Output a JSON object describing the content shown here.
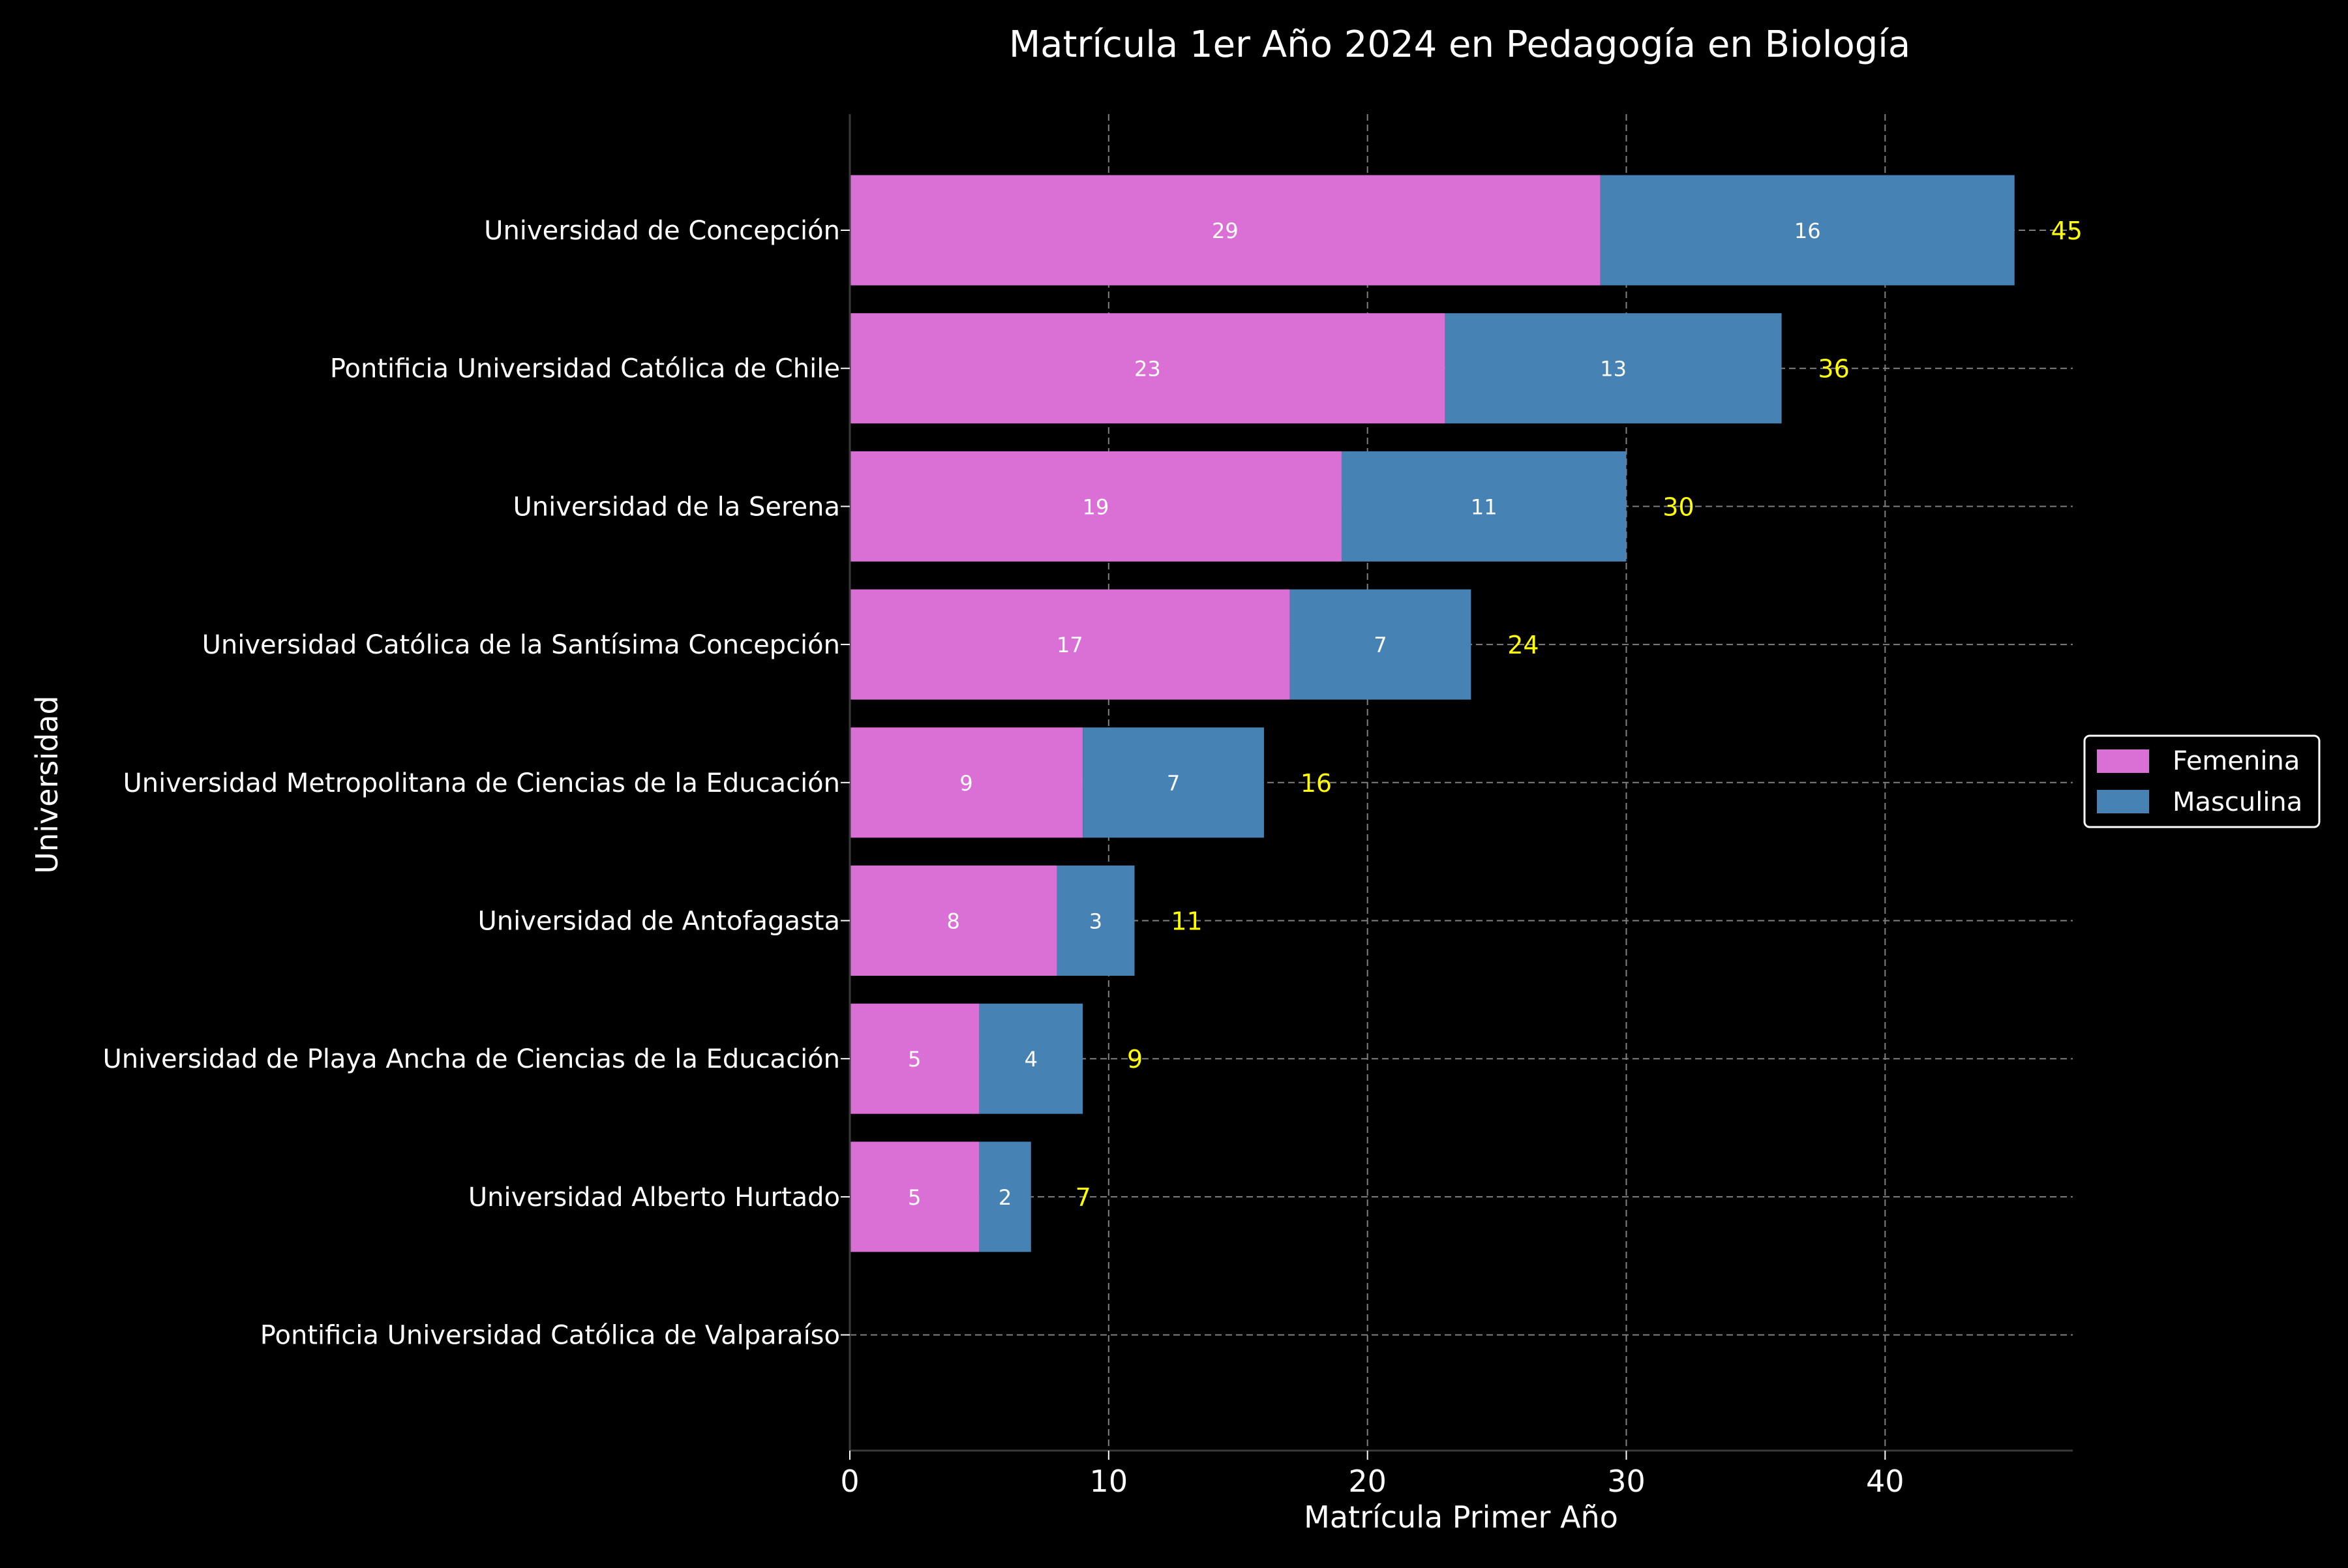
{
  "chart_data": {
    "type": "bar",
    "orientation": "horizontal",
    "stacked": true,
    "title": "Matrícula 1er Año 2024 en Pedagogía en Biología",
    "xlabel": "Matrícula Primer Año",
    "ylabel": "Universidad",
    "xlim": [
      0,
      47.25
    ],
    "xticks": [
      "0",
      "10",
      "20",
      "30",
      "40"
    ],
    "grid": true,
    "legend_position": "right",
    "categories": [
      "Universidad de Concepción",
      "Pontificia Universidad Católica de Chile",
      "Universidad de la Serena",
      "Universidad Católica de la Santísima Concepción",
      "Universidad Metropolitana de Ciencias de la Educación",
      "Universidad de Antofagasta",
      "Universidad de Playa Ancha de Ciencias de la Educación",
      "Universidad Alberto Hurtado",
      "Pontificia Universidad Católica de Valparaíso"
    ],
    "series": [
      {
        "name": "Femenina",
        "color": "#da70d6",
        "values": [
          29,
          23,
          19,
          17,
          9,
          8,
          5,
          5,
          0
        ]
      },
      {
        "name": "Masculina",
        "color": "#4682b4",
        "values": [
          16,
          13,
          11,
          7,
          7,
          3,
          4,
          2,
          0
        ]
      }
    ],
    "totals": [
      45,
      36,
      30,
      24,
      16,
      11,
      9,
      7,
      null
    ],
    "total_label_color": "#ffff00",
    "background": "#000000",
    "text_color": "#ffffff",
    "grid_color": "#808080"
  }
}
